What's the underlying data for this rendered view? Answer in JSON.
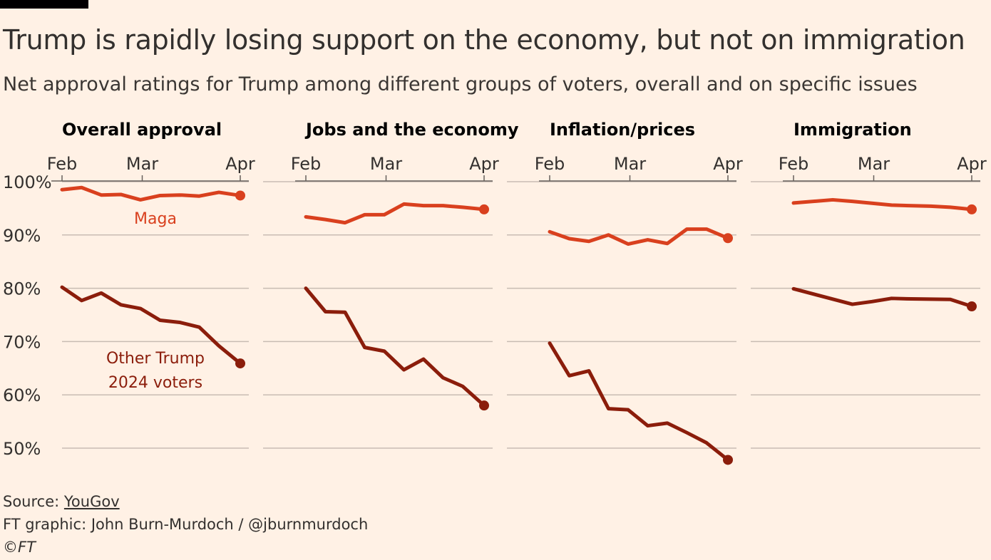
{
  "header": {
    "title": "Trump is rapidly losing support on the economy, but not on immigration",
    "subtitle": "Net approval ratings for Trump among different groups of voters, overall and on specific issues"
  },
  "colors": {
    "maga": "#d9401e",
    "other": "#8b1d0b",
    "grid": "#c8bcb3",
    "text": "#33302e",
    "background": "#fff1e5"
  },
  "chart_data": {
    "type": "line",
    "x_ticks": [
      "Feb",
      "Mar",
      "Apr"
    ],
    "y_ticks": [
      "100%",
      "90%",
      "80%",
      "70%",
      "60%",
      "50%"
    ],
    "ylim": [
      50,
      100
    ],
    "grid": true,
    "series_labels": {
      "maga": "Maga",
      "other": [
        "Other Trump",
        "2024 voters"
      ]
    },
    "panels": [
      {
        "title": "Overall approval",
        "series": [
          {
            "key": "maga",
            "x": [
              0.0,
              0.11,
              0.22,
              0.33,
              0.44,
              0.55,
              0.66,
              0.77,
              0.88,
              1.0
            ],
            "values": [
              98.5,
              98.9,
              97.5,
              97.6,
              96.6,
              97.4,
              97.5,
              97.3,
              98.0,
              97.4
            ]
          },
          {
            "key": "other",
            "x": [
              0.0,
              0.11,
              0.22,
              0.33,
              0.44,
              0.55,
              0.66,
              0.77,
              0.88,
              1.0
            ],
            "values": [
              80.2,
              77.7,
              79.1,
              76.9,
              76.2,
              74.0,
              73.6,
              72.7,
              69.2,
              65.9
            ]
          }
        ]
      },
      {
        "title": "Jobs and the economy",
        "series": [
          {
            "key": "maga",
            "x": [
              0.0,
              0.11,
              0.22,
              0.33,
              0.44,
              0.55,
              0.66,
              0.77,
              0.88,
              1.0
            ],
            "values": [
              93.4,
              92.9,
              92.3,
              93.8,
              93.8,
              95.8,
              95.5,
              95.5,
              95.2,
              94.8
            ]
          },
          {
            "key": "other",
            "x": [
              0.0,
              0.11,
              0.22,
              0.33,
              0.44,
              0.55,
              0.66,
              0.77,
              0.88,
              1.0
            ],
            "values": [
              80.0,
              75.6,
              75.5,
              68.9,
              68.2,
              64.7,
              66.7,
              63.2,
              61.6,
              58.0
            ]
          }
        ]
      },
      {
        "title": "Inflation/prices",
        "series": [
          {
            "key": "maga",
            "x": [
              0.0,
              0.11,
              0.22,
              0.33,
              0.44,
              0.55,
              0.66,
              0.77,
              0.88,
              1.0
            ],
            "values": [
              90.6,
              89.3,
              88.8,
              90.0,
              88.3,
              89.1,
              88.4,
              91.1,
              91.1,
              89.4
            ]
          },
          {
            "key": "other",
            "x": [
              0.0,
              0.11,
              0.22,
              0.33,
              0.44,
              0.55,
              0.66,
              0.77,
              0.88,
              1.0
            ],
            "values": [
              69.7,
              63.6,
              64.5,
              57.4,
              57.2,
              54.2,
              54.7,
              52.9,
              51.0,
              47.8
            ]
          }
        ]
      },
      {
        "title": "Immigration",
        "series": [
          {
            "key": "maga",
            "x": [
              0.0,
              0.22,
              0.33,
              0.55,
              0.77,
              0.88,
              1.0
            ],
            "values": [
              96.0,
              96.6,
              96.3,
              95.6,
              95.4,
              95.2,
              94.8
            ]
          },
          {
            "key": "other",
            "x": [
              0.0,
              0.33,
              0.44,
              0.55,
              0.66,
              0.88,
              1.0
            ],
            "values": [
              79.9,
              77.0,
              77.5,
              78.1,
              78.0,
              77.9,
              76.6
            ]
          }
        ]
      }
    ]
  },
  "footer": {
    "source_prefix": "Source: ",
    "source_link": "YouGov",
    "credit": "FT graphic: John Burn-Murdoch / @jburnmurdoch",
    "copyright": "©FT"
  }
}
